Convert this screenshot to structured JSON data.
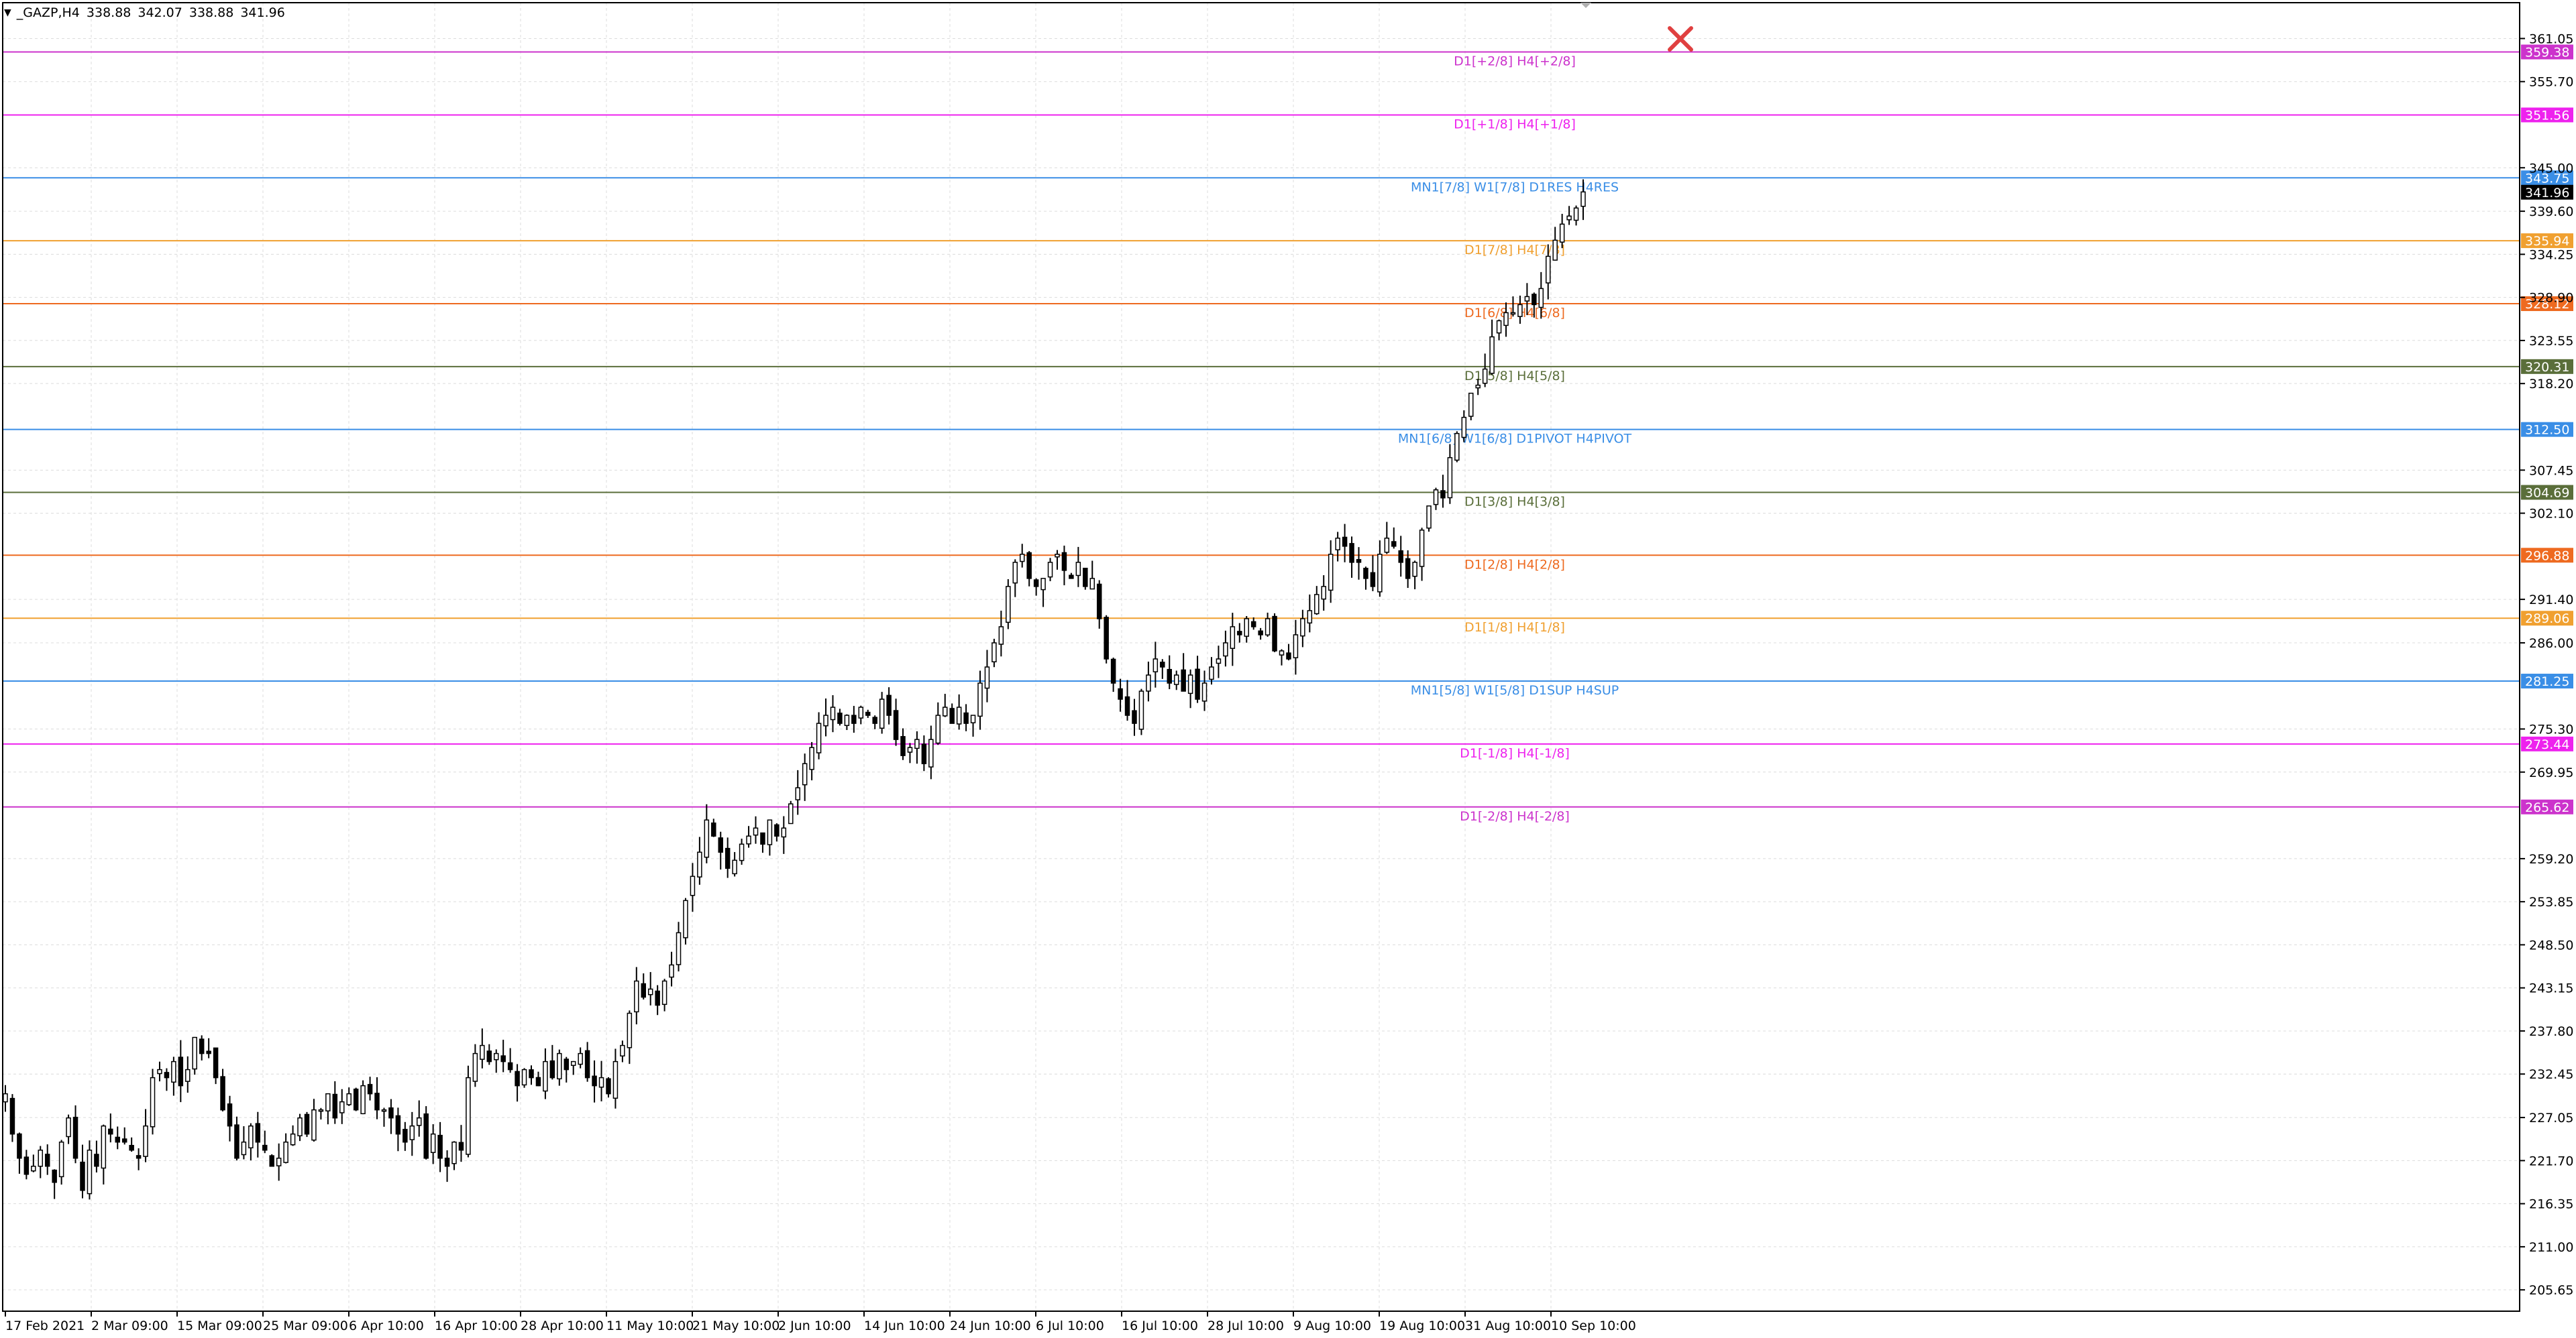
{
  "header": {
    "symbol": "_GAZP,H4",
    "open": "338.88",
    "high": "342.07",
    "low": "338.88",
    "close": "341.96"
  },
  "colors": {
    "grid": "#dcdcdc",
    "axis": "#000000",
    "candle": "#000000",
    "price_tag": "#000000",
    "close_marker": "#e04040"
  },
  "chart_data": {
    "type": "candlestick",
    "title": "_GAZP,H4",
    "ylim": [
      203.0,
      365.5
    ],
    "grid": true,
    "y_ticks": [
      "361.05",
      "355.70",
      "345.00",
      "339.60",
      "334.25",
      "328.90",
      "323.55",
      "318.20",
      "307.45",
      "302.10",
      "291.40",
      "286.00",
      "275.30",
      "269.95",
      "259.20",
      "253.85",
      "248.50",
      "243.15",
      "237.80",
      "232.45",
      "227.05",
      "221.70",
      "216.35",
      "211.00",
      "205.65"
    ],
    "x_labels": [
      "17 Feb 2021",
      "2 Mar 09:00",
      "15 Mar 09:00",
      "25 Mar 09:00",
      "6 Apr 10:00",
      "16 Apr 10:00",
      "28 Apr 10:00",
      "11 May 10:00",
      "21 May 10:00",
      "2 Jun 10:00",
      "14 Jun 10:00",
      "24 Jun 10:00",
      "6 Jul 10:00",
      "16 Jul 10:00",
      "28 Jul 10:00",
      "9 Aug 10:00",
      "19 Aug 10:00",
      "31 Aug 10:00",
      "10 Sep 10:00"
    ],
    "current_price": "341.96",
    "levels": [
      {
        "price": 359.38,
        "tag": "359.38",
        "label": "D1[+2/8] H4[+2/8]",
        "color": "#cc33cc"
      },
      {
        "price": 351.56,
        "tag": "351.56",
        "label": "D1[+1/8] H4[+1/8]",
        "color": "#ee22ee"
      },
      {
        "price": 343.75,
        "tag": "343.75",
        "label": "MN1[7/8] W1[7/8] D1RES H4RES",
        "color": "#3a8ee6"
      },
      {
        "price": 335.94,
        "tag": "335.94",
        "label": "D1[7/8] H4[7/8]",
        "color": "#f0a030"
      },
      {
        "price": 328.12,
        "tag": "328.12",
        "label": "D1[6/8] H4[6/8]",
        "color": "#ee6a20"
      },
      {
        "price": 320.31,
        "tag": "320.31",
        "label": "D1[5/8] H4[5/8]",
        "color": "#5a6e3a"
      },
      {
        "price": 312.5,
        "tag": "312.50",
        "label": "MN1[6/8] W1[6/8] D1PIVOT H4PIVOT",
        "color": "#3a8ee6"
      },
      {
        "price": 304.69,
        "tag": "304.69",
        "label": "D1[3/8] H4[3/8]",
        "color": "#5a6e3a"
      },
      {
        "price": 296.88,
        "tag": "296.88",
        "label": "D1[2/8] H4[2/8]",
        "color": "#ee6a20"
      },
      {
        "price": 289.06,
        "tag": "289.06",
        "label": "D1[1/8] H4[1/8]",
        "color": "#f0a030"
      },
      {
        "price": 281.25,
        "tag": "281.25",
        "label": "MN1[5/8] W1[5/8] D1SUP H4SUP",
        "color": "#3a8ee6"
      },
      {
        "price": 273.44,
        "tag": "273.44",
        "label": "D1[-1/8] H4[-1/8]",
        "color": "#ee22ee"
      },
      {
        "price": 265.62,
        "tag": "265.62",
        "label": "D1[-2/8] H4[-2/8]",
        "color": "#cc33cc"
      }
    ],
    "close_path": [
      230,
      225,
      222,
      220,
      221,
      223,
      221,
      219,
      224,
      227,
      222,
      218,
      223,
      221,
      226,
      225,
      224,
      224,
      223,
      222,
      226,
      232,
      233,
      232,
      234,
      231,
      233,
      237,
      235,
      235,
      232,
      228,
      226,
      222,
      224,
      226,
      224,
      223,
      221,
      222,
      224,
      225,
      227,
      225,
      228,
      228,
      230,
      227,
      229,
      230,
      228,
      231,
      230,
      228,
      228,
      227,
      225,
      224,
      226,
      227,
      222,
      225,
      222,
      221,
      224,
      223,
      232,
      235,
      236,
      234,
      235,
      234,
      233,
      231,
      233,
      232,
      231,
      234,
      232,
      235,
      233,
      234,
      235,
      232,
      231,
      232,
      230,
      234,
      236,
      240,
      244,
      242,
      243,
      241,
      244,
      246,
      250,
      254,
      257,
      260,
      264,
      262,
      260,
      258,
      259,
      261,
      262,
      263,
      261,
      264,
      262,
      263,
      266,
      268,
      271,
      273,
      276,
      277,
      278,
      276,
      277,
      276,
      278,
      277,
      276,
      279,
      277,
      274,
      272,
      273,
      274,
      271,
      274,
      277,
      278,
      276,
      278,
      276,
      277,
      281,
      283,
      286,
      288,
      293,
      296,
      297,
      294,
      293,
      294,
      296,
      297,
      295,
      294,
      296,
      293,
      294,
      289,
      284,
      281,
      279,
      277,
      276,
      280,
      282,
      284,
      283,
      281,
      282,
      280,
      282,
      279,
      281,
      283,
      284,
      286,
      288,
      287,
      289,
      288,
      287,
      289,
      285,
      285,
      284,
      287,
      289,
      290,
      292,
      293,
      297,
      299,
      298,
      296,
      296,
      294,
      293,
      297,
      299,
      298,
      296,
      294,
      296,
      300,
      303,
      305,
      304,
      309,
      312,
      314,
      317,
      318,
      320,
      324,
      326,
      327,
      327,
      328,
      329,
      328,
      330,
      334,
      336,
      338,
      339,
      340,
      342
    ]
  }
}
